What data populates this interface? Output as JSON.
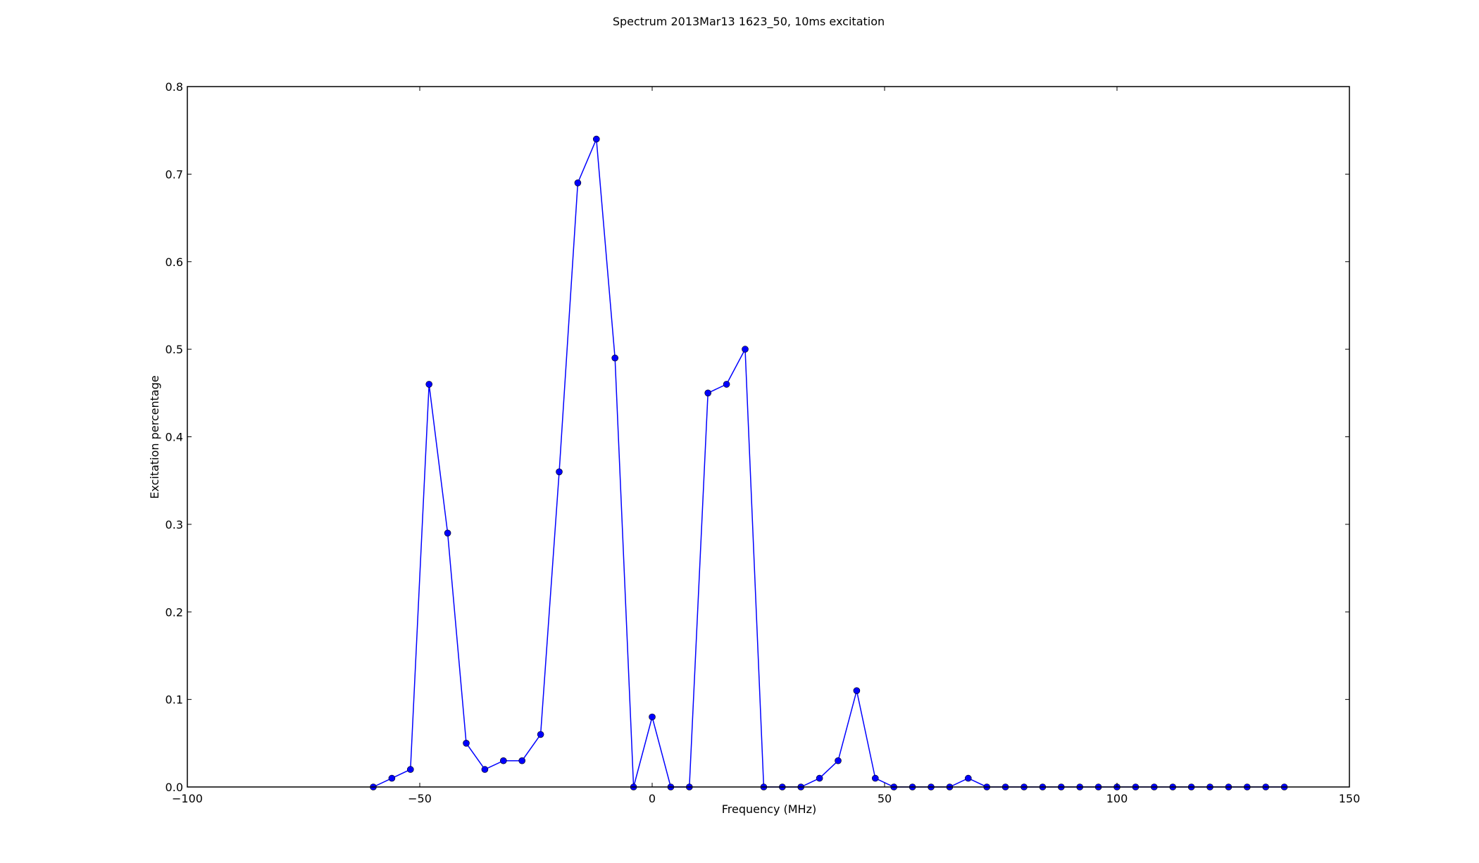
{
  "chart_data": {
    "type": "line",
    "title": "Spectrum 2013Mar13 1623_50, 10ms excitation",
    "xlabel": "Frequency (MHz)",
    "ylabel": "Excitation percentage",
    "xlim": [
      -100,
      150
    ],
    "ylim": [
      0,
      0.8
    ],
    "xticks": [
      -100,
      -50,
      0,
      50,
      100,
      150
    ],
    "xtick_labels": [
      "−100",
      "−50",
      "0",
      "50",
      "100",
      "150"
    ],
    "yticks": [
      0.0,
      0.1,
      0.2,
      0.3,
      0.4,
      0.5,
      0.6,
      0.7,
      0.8
    ],
    "ytick_labels": [
      "0.0",
      "0.1",
      "0.2",
      "0.3",
      "0.4",
      "0.5",
      "0.6",
      "0.7",
      "0.8"
    ],
    "grid": false,
    "line_color": "#0000ff",
    "marker": "circle",
    "x": [
      -60,
      -56,
      -52,
      -48,
      -44,
      -40,
      -36,
      -32,
      -28,
      -24,
      -20,
      -16,
      -12,
      -8,
      -4,
      0,
      4,
      8,
      12,
      16,
      20,
      24,
      28,
      32,
      36,
      40,
      44,
      48,
      52,
      56,
      60,
      64,
      68,
      72,
      76,
      80,
      84,
      88,
      92,
      96,
      100,
      104,
      108,
      112,
      116,
      120,
      124,
      128,
      132,
      136
    ],
    "y": [
      0.0,
      0.01,
      0.02,
      0.46,
      0.29,
      0.05,
      0.02,
      0.03,
      0.03,
      0.06,
      0.36,
      0.69,
      0.74,
      0.49,
      0.0,
      0.08,
      0.0,
      0.0,
      0.45,
      0.46,
      0.5,
      0.0,
      0.0,
      0.0,
      0.01,
      0.03,
      0.11,
      0.01,
      0.0,
      0.0,
      0.0,
      0.0,
      0.01,
      0.0,
      0.0,
      0.0,
      0.0,
      0.0,
      0.0,
      0.0,
      0.0,
      0.0,
      0.0,
      0.0,
      0.0,
      0.0,
      0.0,
      0.0,
      0.0,
      0.0
    ]
  }
}
